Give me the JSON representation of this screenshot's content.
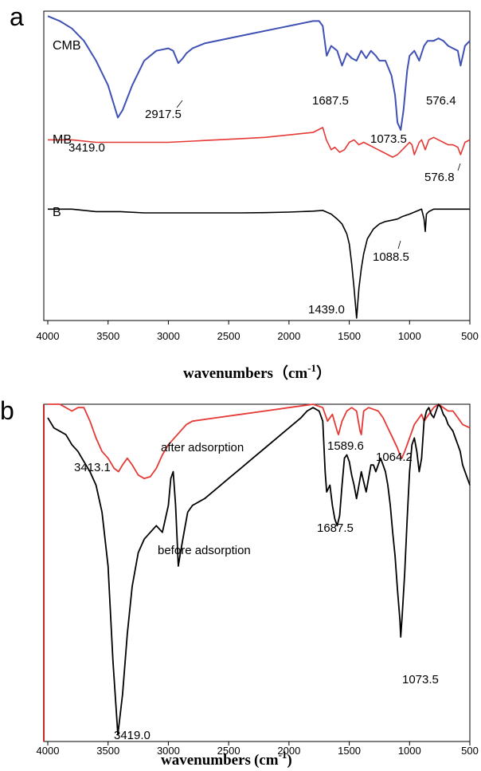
{
  "chart_data": [
    {
      "type": "line",
      "panel_label": "a",
      "xlabel": "wavenumbers（cm",
      "xlabel_sup": "-1",
      "xlabel_tail": "）",
      "ylabel": "",
      "xlim": [
        4000,
        500
      ],
      "xticks": [
        "4000",
        "3500",
        "3000",
        "2500",
        "2000",
        "1500",
        "1000",
        "500"
      ],
      "grid": false,
      "series": [
        {
          "name": "CMB",
          "color": "#3f51b5",
          "x": [
            4000,
            3900,
            3800,
            3700,
            3600,
            3500,
            3450,
            3419,
            3380,
            3300,
            3200,
            3100,
            3000,
            2960,
            2917.5,
            2880,
            2850,
            2800,
            2700,
            2500,
            2300,
            2100,
            1900,
            1800,
            1750,
            1720,
            1687.5,
            1650,
            1600,
            1560,
            1520,
            1480,
            1440,
            1400,
            1360,
            1320,
            1280,
            1250,
            1200,
            1150,
            1120,
            1100,
            1073.5,
            1050,
            1020,
            1000,
            960,
            920,
            880,
            850,
            800,
            760,
            720,
            680,
            640,
            600,
            576.4,
            540,
            500
          ],
          "y": [
            98,
            96,
            93,
            88,
            80,
            70,
            62,
            57,
            60,
            70,
            80,
            84,
            85,
            84,
            79,
            81,
            83,
            85,
            87,
            89,
            91,
            93,
            95,
            96,
            96,
            94,
            82,
            86,
            84,
            78,
            83,
            81,
            80,
            84,
            81,
            84,
            82,
            80,
            80,
            74,
            66,
            55,
            52,
            60,
            76,
            82,
            84,
            80,
            86,
            88,
            88,
            89,
            88,
            86,
            85,
            84,
            78,
            86,
            88
          ]
        },
        {
          "name": "MB",
          "color": "#e53935",
          "x": [
            4000,
            3800,
            3600,
            3400,
            3200,
            3000,
            2800,
            2600,
            2400,
            2200,
            2000,
            1800,
            1720,
            1690,
            1650,
            1620,
            1580,
            1540,
            1500,
            1460,
            1420,
            1380,
            1340,
            1300,
            1260,
            1220,
            1180,
            1140,
            1100,
            1060,
            1020,
            1000,
            980,
            960,
            920,
            900,
            870,
            840,
            800,
            760,
            720,
            680,
            640,
            600,
            576.8,
            540,
            500
          ],
          "y": [
            48,
            48,
            47,
            47,
            47,
            47,
            47.5,
            48,
            48.5,
            49,
            50,
            51,
            53,
            48,
            44,
            45,
            43,
            44,
            47,
            48,
            46,
            47,
            46,
            45,
            44,
            43,
            42,
            41,
            42,
            44,
            46,
            47,
            46,
            42,
            47,
            48,
            44,
            48,
            49,
            48,
            47,
            46,
            46,
            45,
            42,
            47,
            48
          ]
        },
        {
          "name": "B",
          "color": "#000000",
          "x": [
            4000,
            3800,
            3600,
            3400,
            3200,
            3000,
            2800,
            2600,
            2400,
            2200,
            2000,
            1800,
            1720,
            1650,
            1600,
            1560,
            1520,
            1500,
            1480,
            1460,
            1439,
            1420,
            1400,
            1380,
            1350,
            1300,
            1250,
            1200,
            1150,
            1100,
            1088.5,
            1060,
            1000,
            950,
            900,
            880,
            870,
            860,
            840,
            800,
            700,
            600,
            500
          ],
          "y": [
            20,
            20,
            19,
            19,
            18.5,
            18.5,
            18.5,
            18.5,
            18.5,
            18.6,
            18.8,
            19.2,
            19.5,
            18,
            16,
            14,
            10,
            6,
            -2,
            -12,
            -24,
            -12,
            -4,
            2,
            8,
            12,
            14,
            15,
            15.5,
            16,
            16.3,
            17,
            18,
            19,
            20,
            16,
            11,
            18,
            19,
            20,
            20,
            20,
            20
          ]
        }
      ],
      "annotations": [
        "3419.0",
        "2917.5",
        "1687.5",
        "1073.5",
        "576.4",
        "576.8",
        "1439.0",
        "1088.5"
      ]
    },
    {
      "type": "line",
      "panel_label": "b",
      "xlabel": "wavenumbers",
      "xlabel_paren": "(cm",
      "xlabel_sup": "-1",
      "xlabel_tail": ")",
      "ylabel": "",
      "xlim": [
        4000,
        500
      ],
      "xticks": [
        "4000",
        "3500",
        "3000",
        "2500",
        "2000",
        "1500",
        "1000",
        "500"
      ],
      "grid": false,
      "series": [
        {
          "name": "after adsorption",
          "color": "#e53935",
          "x": [
            4000,
            3900,
            3800,
            3750,
            3700,
            3650,
            3600,
            3550,
            3500,
            3450,
            3413.1,
            3380,
            3340,
            3300,
            3250,
            3200,
            3150,
            3100,
            3050,
            3000,
            2950,
            2900,
            2850,
            2800,
            2600,
            2400,
            2200,
            2000,
            1800,
            1720,
            1680,
            1640,
            1600,
            1589.6,
            1560,
            1520,
            1480,
            1440,
            1410,
            1400,
            1380,
            1340,
            1300,
            1260,
            1220,
            1180,
            1140,
            1100,
            1080,
            1064.2,
            1040,
            1000,
            960,
            920,
            900,
            880,
            840,
            800,
            760,
            720,
            680,
            640,
            600,
            560,
            500
          ],
          "y": [
            100,
            100,
            98,
            99,
            99,
            95,
            90,
            86,
            84,
            81,
            80,
            82,
            84,
            82,
            79,
            78,
            78.5,
            81,
            85,
            88,
            90,
            92,
            94,
            95,
            96,
            97,
            98,
            99,
            100,
            99,
            95,
            97,
            92,
            91,
            95,
            98,
            99,
            98,
            92,
            91,
            98,
            99,
            98.5,
            98,
            96,
            93,
            90,
            87,
            85,
            84,
            86,
            90,
            94,
            96,
            97,
            95,
            97,
            99,
            100,
            99,
            98,
            98,
            96,
            94,
            93
          ]
        },
        {
          "name": "before adsorption",
          "color": "#000000",
          "x": [
            4000,
            3950,
            3900,
            3850,
            3800,
            3750,
            3700,
            3650,
            3600,
            3550,
            3500,
            3460,
            3419,
            3380,
            3340,
            3300,
            3250,
            3200,
            3150,
            3100,
            3050,
            3000,
            2980,
            2960,
            2940,
            2917.5,
            2900,
            2880,
            2860,
            2840,
            2800,
            2700,
            2600,
            2500,
            2400,
            2300,
            2200,
            2100,
            2000,
            1900,
            1850,
            1800,
            1750,
            1720,
            1700,
            1687.5,
            1660,
            1640,
            1620,
            1600,
            1580,
            1560,
            1540,
            1520,
            1500,
            1480,
            1460,
            1440,
            1420,
            1400,
            1380,
            1360,
            1340,
            1320,
            1300,
            1280,
            1260,
            1240,
            1220,
            1200,
            1180,
            1160,
            1140,
            1120,
            1100,
            1080,
            1073.5,
            1060,
            1040,
            1020,
            1000,
            980,
            960,
            940,
            920,
            900,
            880,
            860,
            840,
            820,
            800,
            780,
            760,
            740,
            720,
            700,
            680,
            660,
            640,
            620,
            600,
            580,
            560,
            540,
            520,
            500
          ],
          "y": [
            96,
            93,
            92,
            91,
            88,
            86,
            83,
            80,
            76,
            68,
            52,
            24,
            2,
            14,
            32,
            46,
            56,
            60,
            62,
            64,
            62,
            70,
            78,
            80,
            70,
            52,
            56,
            60,
            64,
            68,
            70,
            72,
            75,
            78,
            81,
            84,
            87,
            90,
            93,
            96,
            98,
            99,
            98,
            95,
            80,
            74,
            76,
            70,
            66,
            64,
            67,
            76,
            84,
            85,
            83,
            79,
            76,
            72,
            76,
            80,
            77,
            74,
            78,
            82,
            82,
            80,
            82,
            84,
            82,
            80,
            76,
            70,
            62,
            55,
            45,
            36,
            31,
            38,
            50,
            66,
            80,
            88,
            90,
            86,
            80,
            84,
            95,
            98,
            99,
            97,
            96,
            98,
            100,
            99,
            97,
            96,
            94,
            93,
            92,
            90,
            88,
            86,
            82,
            80,
            78,
            76
          ]
        }
      ],
      "annotations": [
        "3413.1",
        "after adsorption",
        "1589.6",
        "1064.2",
        "before adsorption",
        "1687.5",
        "1073.5",
        "3419.0"
      ]
    }
  ]
}
